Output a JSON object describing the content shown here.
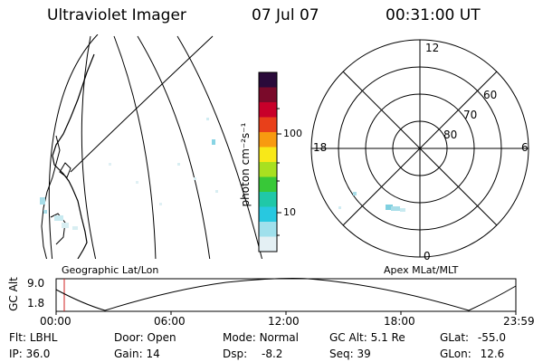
{
  "header": {
    "instrument": "Ultraviolet Imager",
    "date": "07 Jul 07",
    "time": "00:31:00 UT"
  },
  "colorbar": {
    "unit_label": "photon cm⁻²s⁻¹",
    "ticks": [
      "100",
      "10"
    ],
    "colors": [
      "#2a0a3a",
      "#7a0a2a",
      "#c8002a",
      "#e8401a",
      "#f89a10",
      "#f8e818",
      "#a8e020",
      "#38c838",
      "#20c8a8",
      "#28c8e0",
      "#a0e0ec",
      "#e4f0f4"
    ]
  },
  "polar_plot": {
    "mlt_labels": [
      "12",
      "6",
      "0",
      "18"
    ],
    "lat_labels": [
      "60",
      "70",
      "80"
    ]
  },
  "map_labels": {
    "left": "Geographic Lat/Lon",
    "right": "Apex MLat/MLT"
  },
  "altitude_strip": {
    "ylabel": "GC Alt",
    "ymax_label": "9.0",
    "ymin_label": "1.8",
    "time_ticks": [
      "00:00",
      "06:00",
      "12:00",
      "18:00",
      "23:59"
    ],
    "current_time_marker_color": "#d02020"
  },
  "info": {
    "filter_label": "Flt:",
    "filter_value": "LBHL",
    "door_label": "Door:",
    "door_value": "Open",
    "mode_label": "Mode:",
    "mode_value": "Normal",
    "gcalt_label": "GC Alt:",
    "gcalt_value": "5.1 Re",
    "glat_label": "GLat:",
    "glat_value": "-55.0",
    "ip_label": "IP:",
    "ip_value": "36.0",
    "gain_label": "Gain:",
    "gain_value": "14",
    "dsp_label": "Dsp:",
    "dsp_value": "-8.2",
    "seq_label": "Seq:",
    "seq_value": "39",
    "glon_label": "GLon:",
    "glon_value": "12.6"
  }
}
